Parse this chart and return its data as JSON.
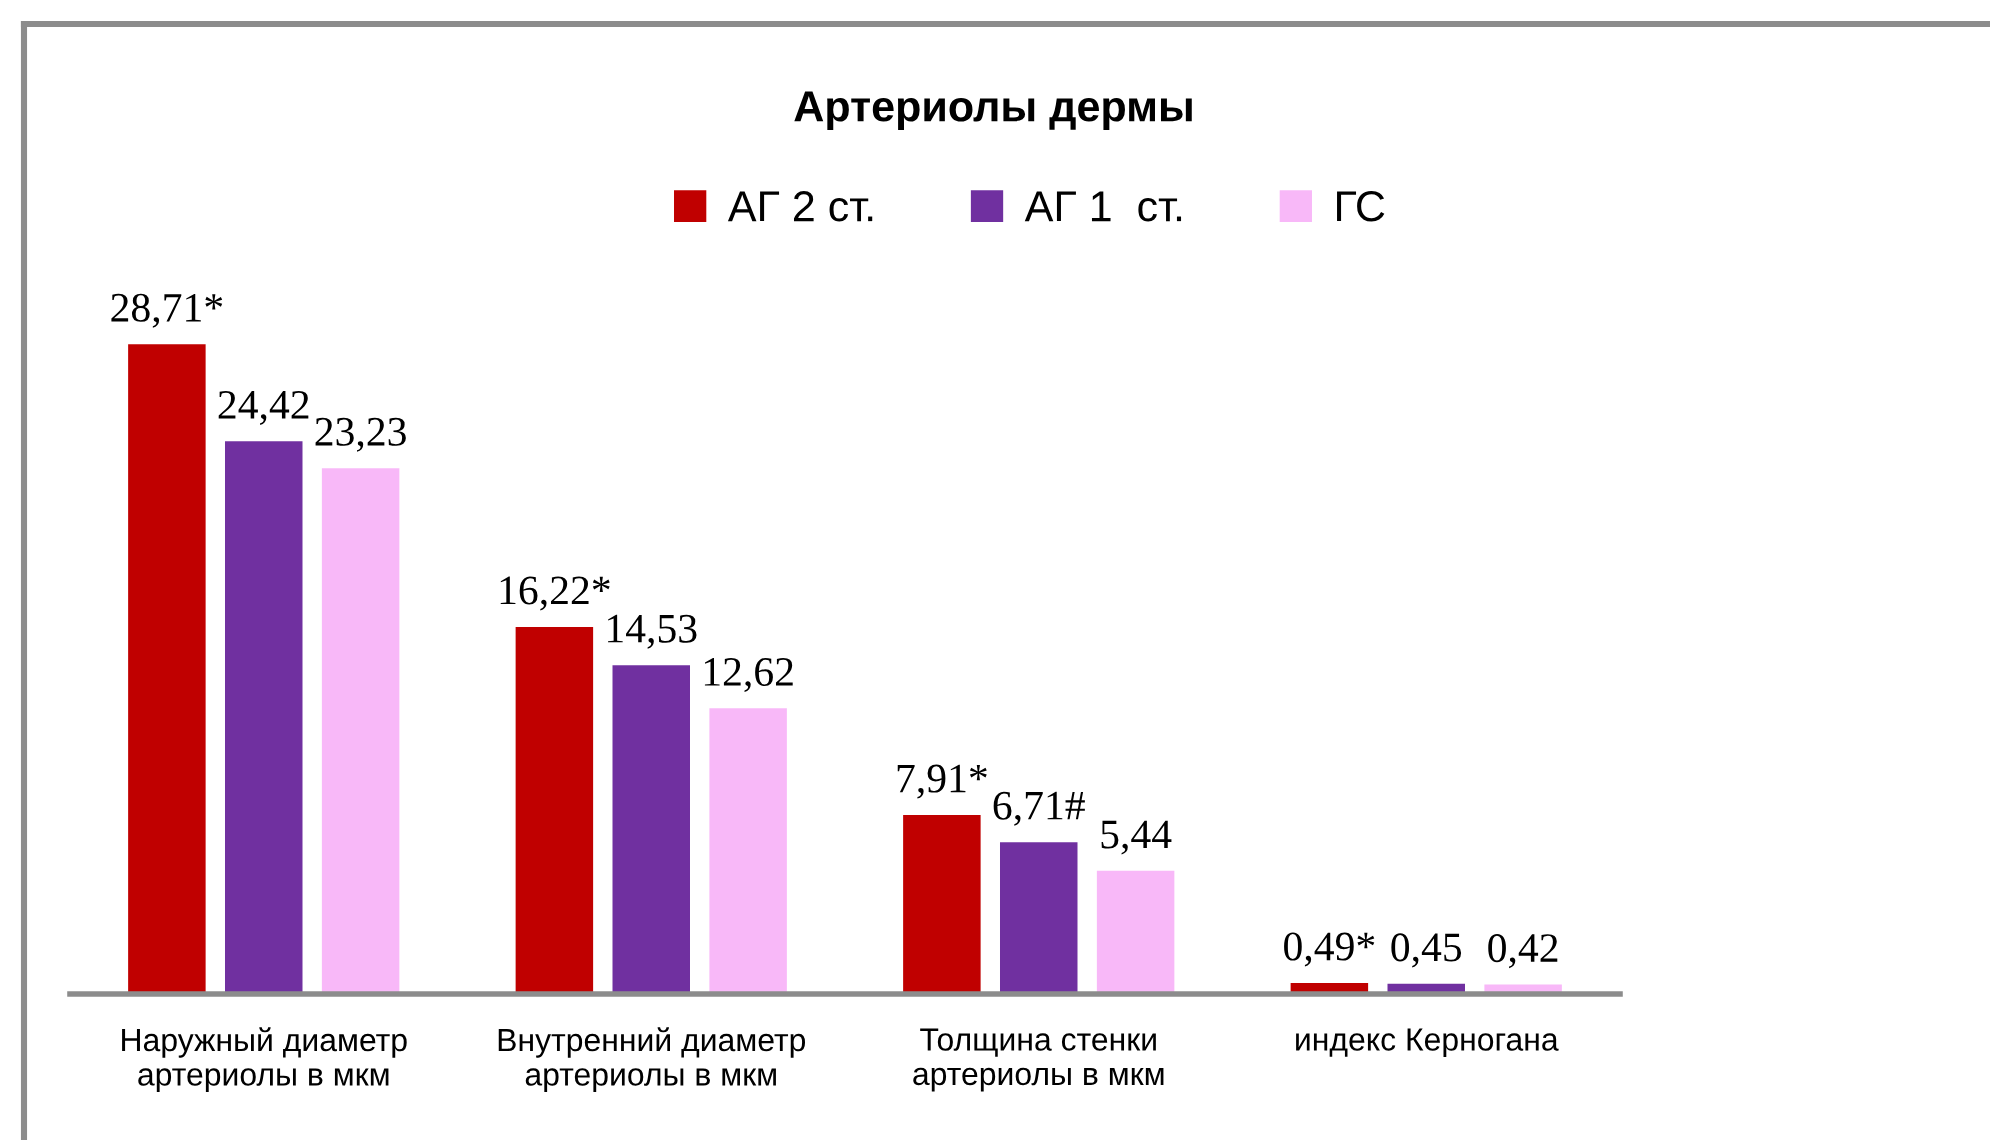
{
  "chart_data": {
    "type": "bar",
    "title": "Артериолы дермы",
    "categories": [
      "Наружный диаметр\nартериолы в мкм",
      "Внутренний диаметр\nартериолы в мкм",
      "Толщина стенки\nартериолы в мкм",
      "индекс Керногана"
    ],
    "series": [
      {
        "name": "АГ 2 ст.",
        "color": "#c00000",
        "values": [
          28.71,
          16.22,
          7.91,
          0.49
        ],
        "value_labels": [
          "28,71*",
          "16,22*",
          "7,91*",
          "0,49*"
        ]
      },
      {
        "name": "АГ 1  ст.",
        "color": "#7030a0",
        "values": [
          24.42,
          14.53,
          6.71,
          0.45
        ],
        "value_labels": [
          "24,42",
          "14,53",
          "6,71#",
          "0,45"
        ]
      },
      {
        "name": "ГС",
        "color": "#f8b8f8",
        "values": [
          23.23,
          12.62,
          5.44,
          0.42
        ],
        "value_labels": [
          "23,23",
          "12,62",
          "5,44",
          "0,42"
        ]
      }
    ],
    "legend": "top",
    "grid": false
  }
}
